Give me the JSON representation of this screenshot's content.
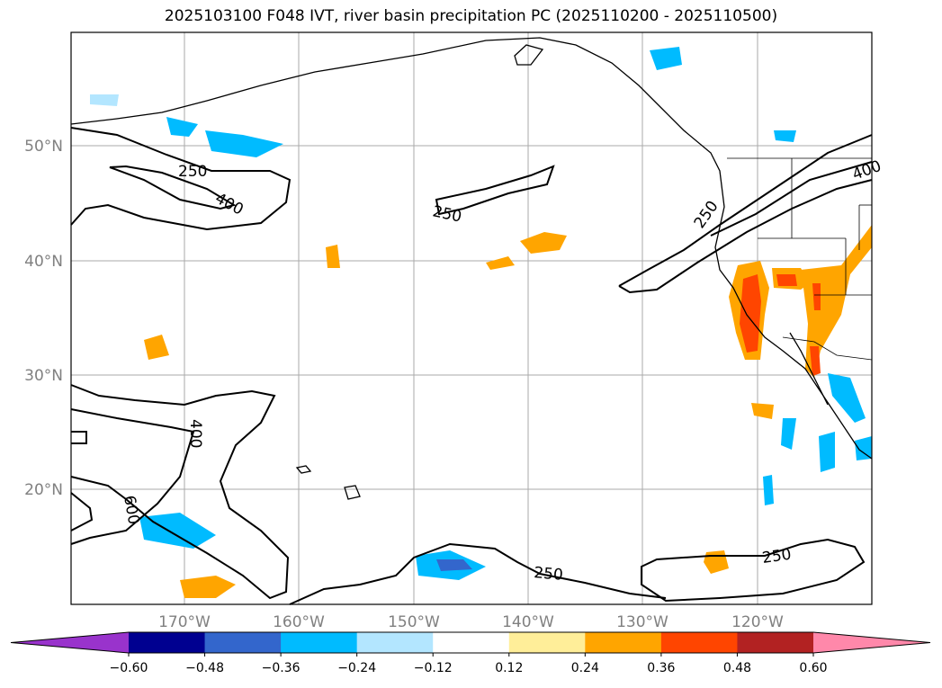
{
  "title": "2025103100 F048 IVT, river basin precipitation PC (2025110200 - 2025110500)",
  "map": {
    "lat_labels": [
      "50°N",
      "40°N",
      "30°N",
      "20°N"
    ],
    "lon_labels": [
      "170°W",
      "160°W",
      "150°W",
      "140°W",
      "130°W",
      "120°W"
    ],
    "contour_labels": [
      "250",
      "400",
      "250",
      "250",
      "400",
      "400",
      "600",
      "250",
      "250"
    ]
  },
  "colorbar": {
    "colors": [
      "#9933cc",
      "#000090",
      "#3366cc",
      "#00bbff",
      "#b3e6ff",
      "#ffffff",
      "#ffee99",
      "#ffa500",
      "#ff4500",
      "#b22222",
      "#ff88aa"
    ],
    "ticks": [
      "−0.60",
      "−0.48",
      "−0.36",
      "−0.24",
      "−0.12",
      "0.12",
      "0.24",
      "0.36",
      "0.48",
      "0.60"
    ]
  },
  "legend": {
    "colors": {
      "land_line": "#000000",
      "grid": "#aaaaaa",
      "contour": "#000000"
    }
  }
}
